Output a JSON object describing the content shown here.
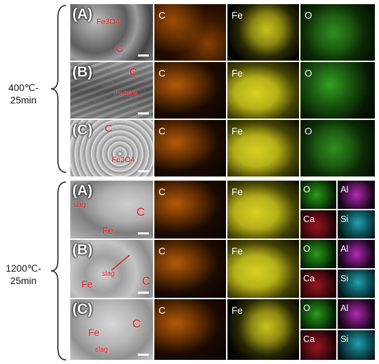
{
  "groups": [
    {
      "temp": "400℃-",
      "time": "25min"
    },
    {
      "temp": "1200℃-",
      "time": "25min"
    }
  ],
  "rows_400": [
    {
      "letter": "(A)",
      "annotations": [
        "Fe3O4",
        "C"
      ],
      "maps": [
        "C",
        "Fe",
        "O"
      ]
    },
    {
      "letter": "(B)",
      "annotations": [
        "C",
        "Fe3O4"
      ],
      "maps": [
        "C",
        "Fe",
        "O"
      ]
    },
    {
      "letter": "(C)",
      "annotations": [
        "C",
        "Fe3O4"
      ],
      "maps": [
        "C",
        "Fe",
        "O"
      ]
    }
  ],
  "rows_1200": [
    {
      "letter": "(A)",
      "annotations": [
        "slag",
        "C",
        "Fe"
      ],
      "maps": [
        "C",
        "Fe"
      ],
      "small_maps": [
        "O",
        "Al",
        "Ca",
        "Si"
      ]
    },
    {
      "letter": "(B)",
      "annotations": [
        "slag",
        "Fe",
        "C"
      ],
      "maps": [
        "C",
        "Fe"
      ],
      "small_maps": [
        "O",
        "Al",
        "Ca",
        "Si"
      ]
    },
    {
      "letter": "(C)",
      "annotations": [
        "C",
        "Fe",
        "slag"
      ],
      "maps": [
        "C",
        "Fe"
      ],
      "small_maps": [
        "O",
        "Al",
        "Ca",
        "Si"
      ]
    }
  ],
  "colors": {
    "carbon_map": "#8a4105",
    "iron_map": "#c9c31e",
    "oxygen_map": "#2e8e1c",
    "aluminium_map": "#b12ab4",
    "calcium_map": "#9a1520",
    "silicon_map": "#1fa3b0",
    "annotation": "#e8141b"
  }
}
